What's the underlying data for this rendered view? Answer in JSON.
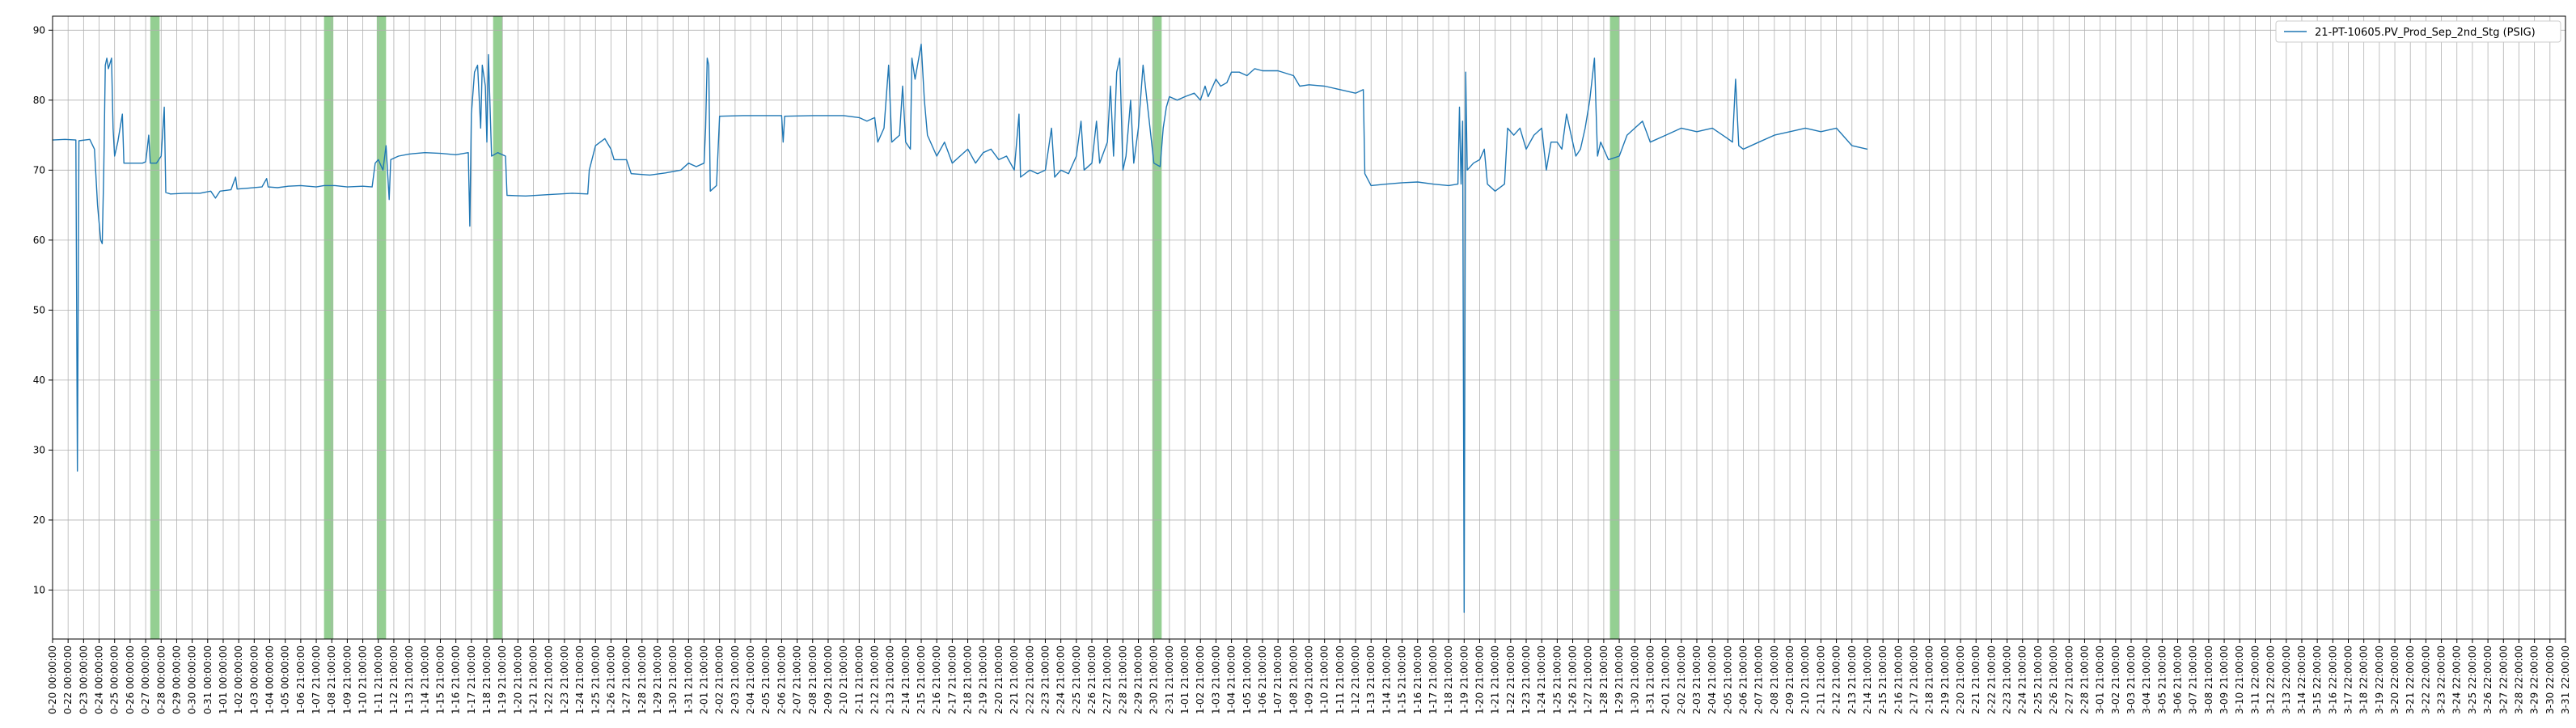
{
  "chart_data": {
    "type": "line",
    "title": "",
    "xlabel": "",
    "ylabel": "",
    "ylim": [
      3,
      92
    ],
    "yticks": [
      10,
      20,
      30,
      40,
      50,
      60,
      70,
      80,
      90
    ],
    "grid": true,
    "legend_position": "top-right",
    "series_color": "#1f77b4",
    "band_color": "#4daf4a",
    "xticks": [
      "0-20 00:00:00",
      "0-22 00:00:00",
      "0-23 00:00:00",
      "0-24 00:00:00",
      "0-25 00:00:00",
      "0-26 00:00:00",
      "0-27 00:00:00",
      "0-28 00:00:00",
      "0-29 00:00:00",
      "0-30 00:00:00",
      "0-31 00:00:00",
      "1-01 00:00:00",
      "1-02 00:00:00",
      "1-03 00:00:00",
      "1-04 00:00:00",
      "1-05 00:00:00",
      "1-06 21:00:00",
      "1-07 21:00:00",
      "1-08 21:00:00",
      "1-09 21:00:00",
      "1-10 21:00:00",
      "1-11 21:00:00",
      "1-12 21:00:00",
      "1-13 21:00:00",
      "1-14 21:00:00",
      "1-15 21:00:00",
      "1-16 21:00:00",
      "1-17 21:00:00",
      "1-18 21:00:00",
      "1-19 21:00:00",
      "1-20 21:00:00",
      "1-21 21:00:00",
      "1-22 21:00:00",
      "1-23 21:00:00",
      "1-24 21:00:00",
      "1-25 21:00:00",
      "1-26 21:00:00",
      "1-27 21:00:00",
      "1-28 21:00:00",
      "1-29 21:00:00",
      "1-30 21:00:00",
      "1-31 21:00:00",
      "2-01 21:00:00",
      "2-02 21:00:00",
      "2-03 21:00:00",
      "2-04 21:00:00",
      "2-05 21:00:00",
      "2-06 21:00:00",
      "2-07 21:00:00",
      "2-08 21:00:00",
      "2-09 21:00:00",
      "2-10 21:00:00",
      "2-11 21:00:00",
      "2-12 21:00:00",
      "2-13 21:00:00",
      "2-14 21:00:00",
      "2-15 21:00:00",
      "2-16 21:00:00",
      "2-17 21:00:00",
      "2-18 21:00:00",
      "2-19 21:00:00",
      "2-20 21:00:00",
      "2-21 21:00:00",
      "2-22 21:00:00",
      "2-23 21:00:00",
      "2-24 21:00:00",
      "2-25 21:00:00",
      "2-26 21:00:00",
      "2-27 21:00:00",
      "2-28 21:00:00",
      "2-29 21:00:00",
      "2-30 21:00:00",
      "2-31 21:00:00",
      "1-01 21:00:00",
      "1-02 21:00:00",
      "1-03 21:00:00",
      "1-04 21:00:00",
      "1-05 21:00:00",
      "1-06 21:00:00",
      "1-07 21:00:00",
      "1-08 21:00:00",
      "1-09 21:00:00",
      "1-10 21:00:00",
      "1-11 21:00:00",
      "1-12 21:00:00",
      "1-13 21:00:00",
      "1-14 21:00:00",
      "1-15 21:00:00",
      "1-16 21:00:00",
      "1-17 21:00:00",
      "1-18 21:00:00",
      "1-19 21:00:00",
      "1-20 21:00:00",
      "1-21 21:00:00",
      "1-22 21:00:00",
      "1-23 21:00:00",
      "1-24 21:00:00",
      "1-25 21:00:00",
      "1-26 21:00:00",
      "1-27 21:00:00",
      "1-28 21:00:00",
      "1-29 21:00:00",
      "1-30 21:00:00",
      "1-31 21:00:00",
      "2-01 21:00:00",
      "2-02 21:00:00",
      "2-03 21:00:00",
      "2-04 21:00:00",
      "2-05 21:00:00",
      "2-06 21:00:00",
      "2-07 21:00:00",
      "2-08 21:00:00",
      "2-09 21:00:00",
      "2-10 21:00:00",
      "2-11 21:00:00",
      "2-12 21:00:00",
      "2-13 21:00:00",
      "2-14 21:00:00",
      "2-15 21:00:00",
      "2-16 21:00:00",
      "2-17 21:00:00",
      "2-18 21:00:00",
      "2-19 21:00:00",
      "2-20 21:00:00",
      "2-21 21:00:00",
      "2-22 21:00:00",
      "2-23 21:00:00",
      "2-24 21:00:00",
      "2-25 21:00:00",
      "2-26 21:00:00",
      "2-27 21:00:00",
      "2-28 21:00:00",
      "3-01 21:00:00",
      "3-02 21:00:00",
      "3-03 21:00:00",
      "3-04 21:00:00",
      "3-05 21:00:00",
      "3-06 21:00:00",
      "3-07 21:00:00",
      "3-08 21:00:00",
      "3-09 21:00:00",
      "3-10 21:00:00",
      "3-11 22:00:00",
      "3-12 22:00:00",
      "3-13 22:00:00",
      "3-14 22:00:00",
      "3-15 22:00:00",
      "3-16 22:00:00",
      "3-17 22:00:00",
      "3-18 22:00:00",
      "3-19 22:00:00",
      "3-20 22:00:00",
      "3-21 22:00:00",
      "3-22 22:00:00",
      "3-23 22:00:00",
      "3-24 22:00:00",
      "3-25 22:00:00",
      "3-26 22:00:00",
      "3-27 22:00:00",
      "3-28 22:00:00",
      "3-29 22:00:00",
      "3-30 22:00:00",
      "3-31 22:00:00"
    ],
    "highlight_bands": [
      {
        "start": 6.3,
        "end": 6.9
      },
      {
        "start": 17.5,
        "end": 18.1
      },
      {
        "start": 20.9,
        "end": 21.5
      },
      {
        "start": 28.4,
        "end": 29.0
      },
      {
        "start": 70.9,
        "end": 71.5
      },
      {
        "start": 100.4,
        "end": 101.0
      }
    ],
    "series": [
      {
        "name": "21-PT-10605.PV_Prod_Sep_2nd_Stg (PSIG)",
        "points": [
          [
            0,
            74.3
          ],
          [
            0.8,
            74.4
          ],
          [
            1.5,
            74.3
          ],
          [
            1.6,
            27
          ],
          [
            1.7,
            74.2
          ],
          [
            2.4,
            74.4
          ],
          [
            2.7,
            73
          ],
          [
            2.9,
            65
          ],
          [
            3.1,
            60
          ],
          [
            3.2,
            59.5
          ],
          [
            3.3,
            70
          ],
          [
            3.4,
            85
          ],
          [
            3.5,
            86
          ],
          [
            3.6,
            84.5
          ],
          [
            3.8,
            86
          ],
          [
            3.9,
            76
          ],
          [
            4.0,
            72
          ],
          [
            4.2,
            74
          ],
          [
            4.5,
            78
          ],
          [
            4.6,
            71
          ],
          [
            5.2,
            71
          ],
          [
            5.8,
            71
          ],
          [
            6.0,
            71.2
          ],
          [
            6.1,
            73
          ],
          [
            6.2,
            75
          ],
          [
            6.3,
            71
          ],
          [
            6.7,
            71
          ],
          [
            7.0,
            72
          ],
          [
            7.2,
            79
          ],
          [
            7.3,
            66.8
          ],
          [
            7.6,
            66.6
          ],
          [
            8.5,
            66.7
          ],
          [
            9.5,
            66.7
          ],
          [
            10.2,
            67
          ],
          [
            10.5,
            66
          ],
          [
            10.8,
            67
          ],
          [
            11.5,
            67.2
          ],
          [
            11.8,
            69
          ],
          [
            11.9,
            67.3
          ],
          [
            12.5,
            67.4
          ],
          [
            13.5,
            67.6
          ],
          [
            13.8,
            68.8
          ],
          [
            13.9,
            67.6
          ],
          [
            14.5,
            67.5
          ],
          [
            15.2,
            67.7
          ],
          [
            16,
            67.8
          ],
          [
            17,
            67.6
          ],
          [
            17.5,
            67.8
          ],
          [
            18.2,
            67.8
          ],
          [
            19,
            67.6
          ],
          [
            20,
            67.7
          ],
          [
            20.6,
            67.6
          ],
          [
            20.8,
            71
          ],
          [
            21.0,
            71.5
          ],
          [
            21.3,
            70
          ],
          [
            21.5,
            73.5
          ],
          [
            21.7,
            65.8
          ],
          [
            21.8,
            71.5
          ],
          [
            22.3,
            72
          ],
          [
            23,
            72.3
          ],
          [
            24,
            72.5
          ],
          [
            25,
            72.4
          ],
          [
            26,
            72.2
          ],
          [
            26.8,
            72.5
          ],
          [
            26.9,
            62
          ],
          [
            27.0,
            78
          ],
          [
            27.2,
            84
          ],
          [
            27.4,
            85
          ],
          [
            27.6,
            76
          ],
          [
            27.7,
            85
          ],
          [
            27.9,
            82
          ],
          [
            28.0,
            74
          ],
          [
            28.1,
            86.5
          ],
          [
            28.3,
            72
          ],
          [
            28.7,
            72.5
          ],
          [
            29.2,
            72
          ],
          [
            29.3,
            66.4
          ],
          [
            30.5,
            66.3
          ],
          [
            32,
            66.5
          ],
          [
            33.5,
            66.7
          ],
          [
            34.5,
            66.6
          ],
          [
            34.6,
            70
          ],
          [
            35,
            73.5
          ],
          [
            35.6,
            74.5
          ],
          [
            36,
            73
          ],
          [
            36.2,
            71.5
          ],
          [
            37,
            71.5
          ],
          [
            37.3,
            69.5
          ],
          [
            38.5,
            69.3
          ],
          [
            39.5,
            69.6
          ],
          [
            40.5,
            70
          ],
          [
            41,
            71
          ],
          [
            41.5,
            70.5
          ],
          [
            42.0,
            71
          ],
          [
            42.1,
            76
          ],
          [
            42.2,
            86
          ],
          [
            42.3,
            85
          ],
          [
            42.4,
            67
          ],
          [
            42.8,
            67.8
          ],
          [
            43.0,
            77.7
          ],
          [
            44.5,
            77.8
          ],
          [
            46,
            77.8
          ],
          [
            47,
            77.8
          ],
          [
            47.1,
            74
          ],
          [
            47.2,
            77.7
          ],
          [
            49,
            77.8
          ],
          [
            51,
            77.8
          ],
          [
            52,
            77.5
          ],
          [
            52.5,
            77
          ],
          [
            53,
            77.5
          ],
          [
            53.2,
            74
          ],
          [
            53.6,
            76
          ],
          [
            53.9,
            85
          ],
          [
            54.1,
            74
          ],
          [
            54.6,
            75
          ],
          [
            54.8,
            82
          ],
          [
            55.0,
            74
          ],
          [
            55.3,
            73
          ],
          [
            55.4,
            86
          ],
          [
            55.6,
            83
          ],
          [
            56.0,
            88
          ],
          [
            56.2,
            80
          ],
          [
            56.4,
            75
          ],
          [
            57.0,
            72
          ],
          [
            57.5,
            74
          ],
          [
            58.0,
            71
          ],
          [
            58.5,
            72
          ],
          [
            59,
            73
          ],
          [
            59.5,
            71
          ],
          [
            60,
            72.5
          ],
          [
            60.5,
            73
          ],
          [
            61,
            71.5
          ],
          [
            61.5,
            72
          ],
          [
            62,
            70
          ],
          [
            62.3,
            78
          ],
          [
            62.4,
            69
          ],
          [
            63,
            70
          ],
          [
            63.5,
            69.5
          ],
          [
            64,
            70
          ],
          [
            64.4,
            76
          ],
          [
            64.6,
            69
          ],
          [
            65,
            70
          ],
          [
            65.5,
            69.5
          ],
          [
            66,
            72
          ],
          [
            66.3,
            77
          ],
          [
            66.5,
            70
          ],
          [
            67,
            71
          ],
          [
            67.3,
            77
          ],
          [
            67.5,
            71
          ],
          [
            68.0,
            74
          ],
          [
            68.2,
            82
          ],
          [
            68.4,
            72
          ],
          [
            68.6,
            84
          ],
          [
            68.8,
            86
          ],
          [
            69.0,
            70
          ],
          [
            69.2,
            72
          ],
          [
            69.5,
            80
          ],
          [
            69.7,
            71
          ],
          [
            70.0,
            76
          ],
          [
            70.3,
            85
          ],
          [
            70.5,
            81
          ],
          [
            71.0,
            71
          ],
          [
            71.4,
            70.5
          ],
          [
            71.6,
            76
          ],
          [
            71.8,
            79
          ],
          [
            72.0,
            80.5
          ],
          [
            72.5,
            80
          ],
          [
            73,
            80.5
          ],
          [
            73.6,
            81
          ],
          [
            74.0,
            80
          ],
          [
            74.3,
            82
          ],
          [
            74.5,
            80.5
          ],
          [
            75,
            83
          ],
          [
            75.3,
            82
          ],
          [
            75.7,
            82.5
          ],
          [
            76.0,
            84
          ],
          [
            76.5,
            84
          ],
          [
            77.0,
            83.5
          ],
          [
            77.5,
            84.5
          ],
          [
            78,
            84.2
          ],
          [
            79,
            84.2
          ],
          [
            80,
            83.5
          ],
          [
            80.4,
            82
          ],
          [
            81,
            82.2
          ],
          [
            82,
            82
          ],
          [
            83,
            81.5
          ],
          [
            84,
            81
          ],
          [
            84.5,
            81.5
          ],
          [
            84.6,
            69.5
          ],
          [
            85,
            67.8
          ],
          [
            86,
            68
          ],
          [
            87,
            68.2
          ],
          [
            88,
            68.3
          ],
          [
            89,
            68
          ],
          [
            90,
            67.8
          ],
          [
            90.6,
            68
          ],
          [
            90.7,
            79
          ],
          [
            90.8,
            68
          ],
          [
            90.9,
            77
          ],
          [
            91.0,
            6.8
          ],
          [
            91.1,
            84
          ],
          [
            91.2,
            70
          ],
          [
            91.6,
            71
          ],
          [
            92,
            71.5
          ],
          [
            92.3,
            73
          ],
          [
            92.5,
            68
          ],
          [
            93,
            67
          ],
          [
            93.6,
            68
          ],
          [
            93.8,
            76
          ],
          [
            94.2,
            75
          ],
          [
            94.6,
            76
          ],
          [
            95,
            73
          ],
          [
            95.5,
            75
          ],
          [
            96,
            76
          ],
          [
            96.3,
            70
          ],
          [
            96.6,
            74
          ],
          [
            97.0,
            74
          ],
          [
            97.3,
            73
          ],
          [
            97.6,
            78
          ],
          [
            97.9,
            75
          ],
          [
            98.2,
            72
          ],
          [
            98.5,
            73
          ],
          [
            98.8,
            76
          ],
          [
            99.1,
            80
          ],
          [
            99.4,
            86
          ],
          [
            99.6,
            72
          ],
          [
            99.8,
            74
          ],
          [
            100.3,
            71.5
          ],
          [
            101,
            72
          ],
          [
            101.5,
            75
          ],
          [
            102,
            76
          ],
          [
            102.5,
            77
          ],
          [
            103,
            74
          ],
          [
            104,
            75
          ],
          [
            105,
            76
          ],
          [
            106,
            75.5
          ],
          [
            107,
            76
          ],
          [
            108,
            74.5
          ],
          [
            108.3,
            74
          ],
          [
            108.5,
            83
          ],
          [
            108.7,
            73.5
          ],
          [
            109,
            73
          ],
          [
            110,
            74
          ],
          [
            111,
            75
          ],
          [
            112,
            75.5
          ],
          [
            113,
            76
          ],
          [
            114,
            75.5
          ],
          [
            115,
            76
          ],
          [
            116,
            73.5
          ],
          [
            117,
            73
          ]
        ]
      }
    ]
  }
}
